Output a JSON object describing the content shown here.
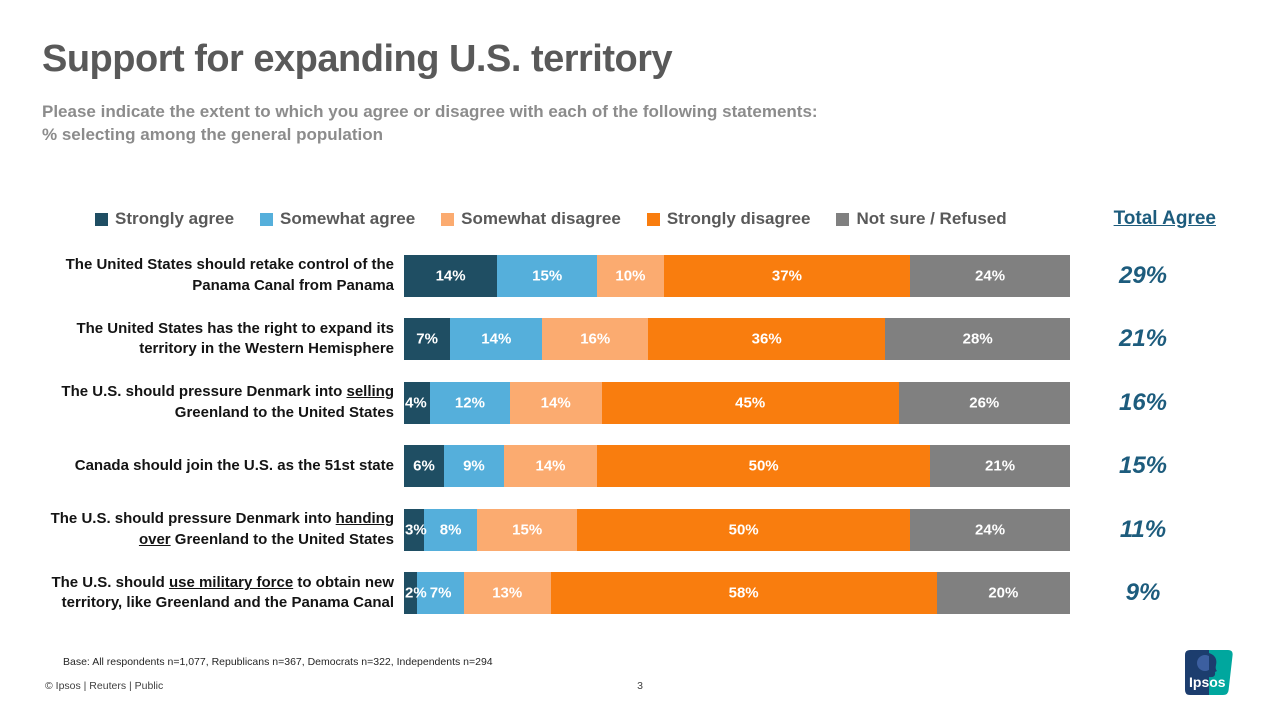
{
  "header": {
    "title": "Support for expanding U.S. territory",
    "subtitle_line1": "Please indicate the extent to which you agree or disagree with each of the following statements:",
    "subtitle_line2": "% selecting among the general population"
  },
  "totals_header": "Total Agree",
  "chart_data": {
    "type": "bar",
    "orientation": "horizontal",
    "stacked": true,
    "xlim": [
      0,
      100
    ],
    "legend_position": "top",
    "series_names": [
      "Strongly agree",
      "Somewhat agree",
      "Somewhat disagree",
      "Strongly disagree",
      "Not sure / Refused"
    ],
    "series_colors": [
      "#1F4E63",
      "#55AFDB",
      "#FBAB70",
      "#F97D0E",
      "#808080"
    ],
    "accent_color": "#1D5C7D",
    "rows": [
      {
        "label_parts": [
          {
            "text": "The United States should retake control of the Panama Canal from Panama"
          }
        ],
        "values": [
          14,
          15,
          10,
          37,
          24
        ],
        "total_agree": "29%"
      },
      {
        "label_parts": [
          {
            "text": "The United States has the right to expand its territory in the Western Hemisphere"
          }
        ],
        "values": [
          7,
          14,
          16,
          36,
          28
        ],
        "total_agree": "21%"
      },
      {
        "label_parts": [
          {
            "text": "The U.S. should pressure Denmark into "
          },
          {
            "text": "selling",
            "u": true
          },
          {
            "text": " Greenland to the United States"
          }
        ],
        "values": [
          4,
          12,
          14,
          45,
          26
        ],
        "total_agree": "16%"
      },
      {
        "label_parts": [
          {
            "text": "Canada should join the U.S. as the 51st state"
          }
        ],
        "values": [
          6,
          9,
          14,
          50,
          21
        ],
        "total_agree": "15%"
      },
      {
        "label_parts": [
          {
            "text": "The U.S. should pressure Denmark into "
          },
          {
            "text": "handing over",
            "u": true
          },
          {
            "text": " Greenland to the United States"
          }
        ],
        "values": [
          3,
          8,
          15,
          50,
          24
        ],
        "total_agree": "11%"
      },
      {
        "label_parts": [
          {
            "text": "The U.S. should "
          },
          {
            "text": "use military force",
            "u": true
          },
          {
            "text": " to obtain new territory, like Greenland and the Panama Canal"
          }
        ],
        "values": [
          2,
          7,
          13,
          58,
          20
        ],
        "total_agree": "9%"
      }
    ]
  },
  "footnote": "Base: All respondents n=1,077, Republicans n=367, Democrats n=322, Independents n=294",
  "footer": {
    "left": "© Ipsos | Reuters | Public",
    "page": "3"
  },
  "logo": {
    "text": "Ipsos",
    "left_color": "#1C3D6E",
    "right_color": "#00A79E"
  }
}
